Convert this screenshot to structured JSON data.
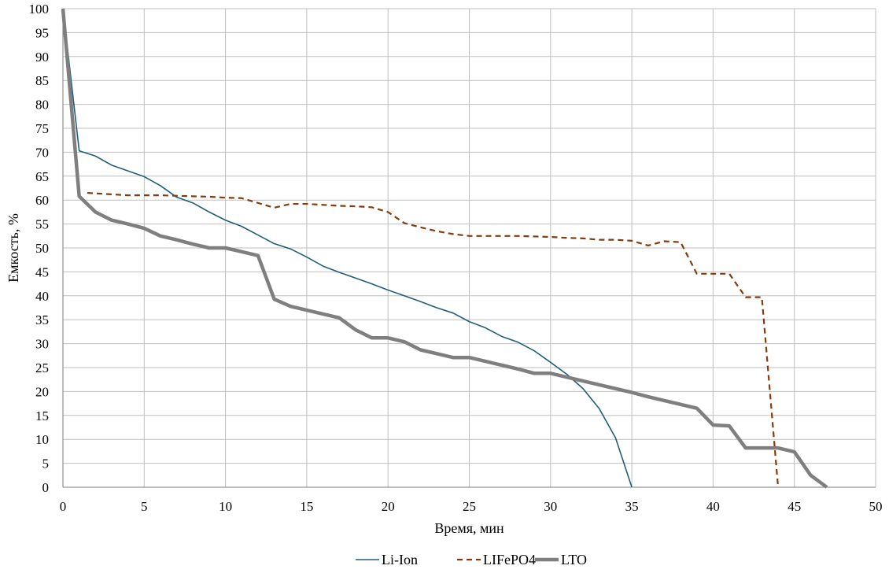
{
  "chart_data": {
    "type": "line",
    "title": "",
    "xlabel": "Время, мин",
    "ylabel": "Емкость, %",
    "xlim": [
      0,
      50
    ],
    "ylim": [
      0,
      100
    ],
    "x_ticks": [
      0,
      5,
      10,
      15,
      20,
      25,
      30,
      35,
      40,
      45,
      50
    ],
    "y_ticks": [
      0,
      5,
      10,
      15,
      20,
      25,
      30,
      35,
      40,
      45,
      50,
      55,
      60,
      65,
      70,
      75,
      80,
      85,
      90,
      95,
      100
    ],
    "grid": true,
    "legend_position": "bottom",
    "series": [
      {
        "name": "Li-Ion",
        "color": "#1f5f7a",
        "style": "solid-thin",
        "points": [
          [
            0,
            100
          ],
          [
            1,
            70.3
          ],
          [
            2,
            69.2
          ],
          [
            3,
            67.3
          ],
          [
            4,
            66.1
          ],
          [
            5,
            64.9
          ],
          [
            6,
            63.0
          ],
          [
            7,
            60.6
          ],
          [
            8,
            59.4
          ],
          [
            9,
            57.5
          ],
          [
            10,
            55.8
          ],
          [
            11,
            54.5
          ],
          [
            12,
            52.7
          ],
          [
            13,
            50.9
          ],
          [
            14,
            49.8
          ],
          [
            15,
            48.1
          ],
          [
            16,
            46.2
          ],
          [
            17,
            44.9
          ],
          [
            18,
            43.7
          ],
          [
            19,
            42.5
          ],
          [
            20,
            41.2
          ],
          [
            21,
            40.0
          ],
          [
            22,
            38.8
          ],
          [
            23,
            37.5
          ],
          [
            24,
            36.4
          ],
          [
            25,
            34.6
          ],
          [
            26,
            33.3
          ],
          [
            27,
            31.5
          ],
          [
            28,
            30.3
          ],
          [
            29,
            28.5
          ],
          [
            30,
            26.1
          ],
          [
            31,
            23.6
          ],
          [
            32,
            20.6
          ],
          [
            33,
            16.4
          ],
          [
            34,
            10.3
          ],
          [
            35,
            0
          ]
        ]
      },
      {
        "name": "LIFePO4",
        "color": "#843c0c",
        "style": "dashed",
        "points": [
          [
            1.5,
            61.5
          ],
          [
            3,
            61.2
          ],
          [
            4,
            61.0
          ],
          [
            5,
            61.0
          ],
          [
            6,
            61.0
          ],
          [
            7,
            60.9
          ],
          [
            8,
            60.8
          ],
          [
            9,
            60.7
          ],
          [
            10,
            60.5
          ],
          [
            11,
            60.4
          ],
          [
            12,
            59.4
          ],
          [
            13,
            58.4
          ],
          [
            14,
            59.2
          ],
          [
            15,
            59.2
          ],
          [
            16,
            59.0
          ],
          [
            17,
            58.8
          ],
          [
            18,
            58.7
          ],
          [
            19,
            58.5
          ],
          [
            20,
            57.5
          ],
          [
            21,
            55.2
          ],
          [
            22,
            54.3
          ],
          [
            23,
            53.5
          ],
          [
            24,
            52.9
          ],
          [
            25,
            52.5
          ],
          [
            26,
            52.5
          ],
          [
            27,
            52.5
          ],
          [
            28,
            52.5
          ],
          [
            29,
            52.4
          ],
          [
            30,
            52.3
          ],
          [
            31,
            52.1
          ],
          [
            32,
            52.0
          ],
          [
            33,
            51.7
          ],
          [
            34,
            51.7
          ],
          [
            35,
            51.5
          ],
          [
            36,
            50.5
          ],
          [
            37,
            51.4
          ],
          [
            38,
            51.2
          ],
          [
            39,
            44.6
          ],
          [
            40,
            44.6
          ],
          [
            41,
            44.6
          ],
          [
            42,
            39.7
          ],
          [
            43,
            39.7
          ],
          [
            44,
            0
          ]
        ]
      },
      {
        "name": "LTO",
        "color": "#7f7f7f",
        "style": "solid-thick",
        "points": [
          [
            0,
            100
          ],
          [
            1,
            60.8
          ],
          [
            2,
            57.5
          ],
          [
            3,
            55.8
          ],
          [
            4,
            55.0
          ],
          [
            5,
            54.1
          ],
          [
            6,
            52.5
          ],
          [
            7,
            51.7
          ],
          [
            8,
            50.8
          ],
          [
            9,
            50.0
          ],
          [
            10,
            50.0
          ],
          [
            11,
            49.2
          ],
          [
            12,
            48.4
          ],
          [
            13,
            39.3
          ],
          [
            14,
            37.8
          ],
          [
            15,
            37.0
          ],
          [
            16,
            36.2
          ],
          [
            17,
            35.4
          ],
          [
            18,
            32.9
          ],
          [
            19,
            31.2
          ],
          [
            20,
            31.2
          ],
          [
            21,
            30.4
          ],
          [
            22,
            28.7
          ],
          [
            23,
            27.9
          ],
          [
            24,
            27.1
          ],
          [
            25,
            27.1
          ],
          [
            26,
            26.3
          ],
          [
            27,
            25.5
          ],
          [
            28,
            24.7
          ],
          [
            29,
            23.8
          ],
          [
            30,
            23.8
          ],
          [
            31,
            23.0
          ],
          [
            32,
            22.2
          ],
          [
            33,
            21.4
          ],
          [
            34,
            20.6
          ],
          [
            35,
            19.8
          ],
          [
            36,
            18.9
          ],
          [
            37,
            18.1
          ],
          [
            38,
            17.3
          ],
          [
            39,
            16.5
          ],
          [
            40,
            13.0
          ],
          [
            41,
            12.8
          ],
          [
            42,
            8.2
          ],
          [
            43,
            8.2
          ],
          [
            44,
            8.2
          ],
          [
            45,
            7.4
          ],
          [
            46,
            2.5
          ],
          [
            47,
            0
          ]
        ]
      }
    ]
  }
}
